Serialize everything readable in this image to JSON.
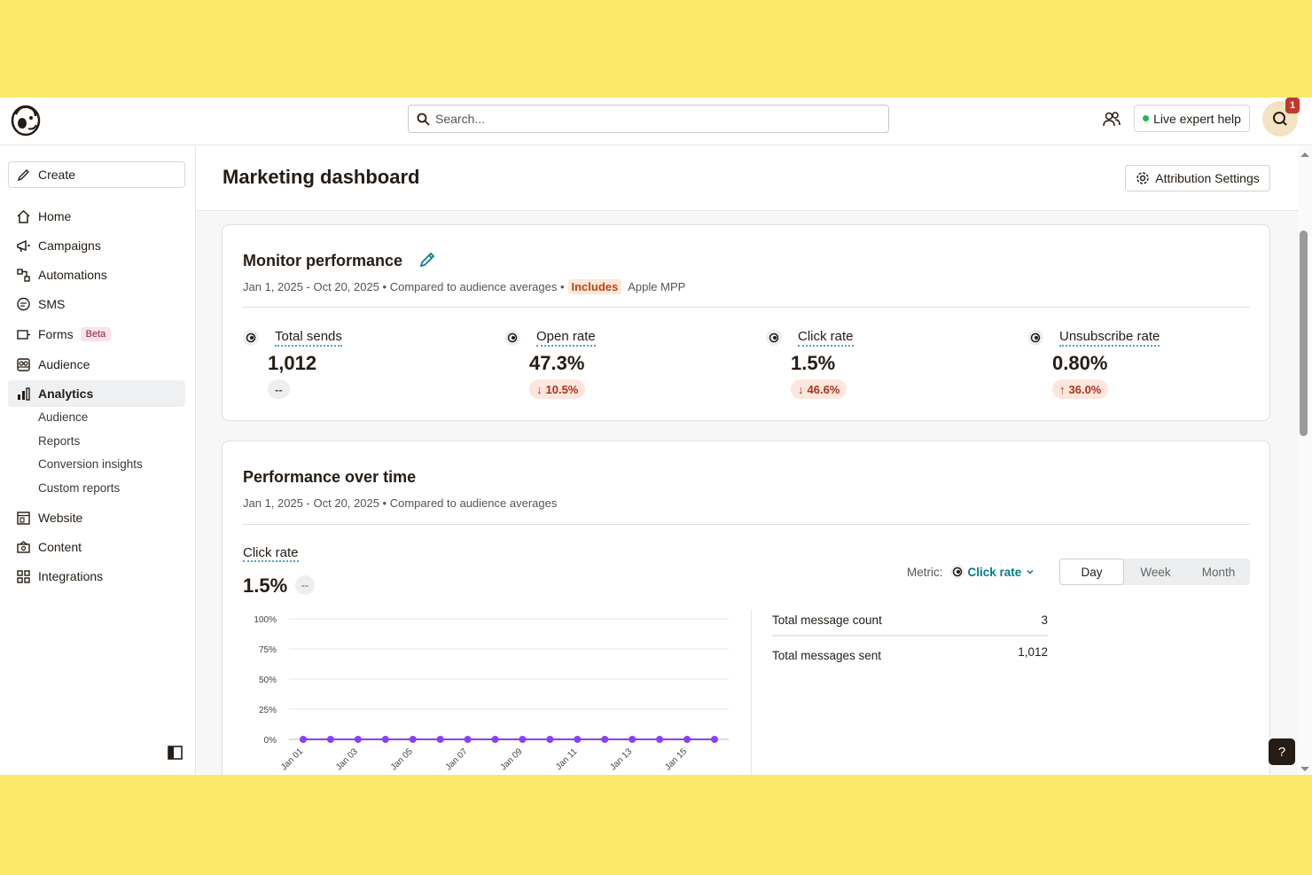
{
  "topbar": {
    "search_placeholder": "Search...",
    "live_help_label": "Live expert help",
    "notification_count": "1"
  },
  "sidebar": {
    "create_label": "Create",
    "items": [
      {
        "label": "Home",
        "icon": "home-icon"
      },
      {
        "label": "Campaigns",
        "icon": "megaphone-icon"
      },
      {
        "label": "Automations",
        "icon": "automations-icon"
      },
      {
        "label": "SMS",
        "icon": "sms-icon"
      },
      {
        "label": "Forms",
        "icon": "forms-icon",
        "badge": "Beta"
      },
      {
        "label": "Audience",
        "icon": "audience-icon"
      },
      {
        "label": "Analytics",
        "icon": "analytics-icon",
        "active": true
      },
      {
        "label": "Website",
        "icon": "website-icon"
      },
      {
        "label": "Content",
        "icon": "content-icon"
      },
      {
        "label": "Integrations",
        "icon": "integrations-icon"
      }
    ],
    "analytics_sub": [
      "Audience",
      "Reports",
      "Conversion insights",
      "Custom reports"
    ]
  },
  "page": {
    "title": "Marketing dashboard",
    "attribution_label": "Attribution Settings"
  },
  "monitor": {
    "title": "Monitor performance",
    "date_range": "Jan 1, 2025 - Oct 20, 2025 • Compared to audience averages •",
    "includes": "Includes",
    "apple_mpp": "Apple MPP",
    "metrics": [
      {
        "label": "Total sends",
        "value": "1,012",
        "change": "--",
        "direction": "none"
      },
      {
        "label": "Open rate",
        "value": "47.3%",
        "change": "10.5%",
        "direction": "down"
      },
      {
        "label": "Click rate",
        "value": "1.5%",
        "change": "46.6%",
        "direction": "down"
      },
      {
        "label": "Unsubscribe rate",
        "value": "0.80%",
        "change": "36.0%",
        "direction": "up"
      }
    ]
  },
  "performance": {
    "title": "Performance over time",
    "date_range": "Jan 1, 2025 - Oct 20, 2025 • Compared to audience averages",
    "metric_label": "Click rate",
    "metric_value": "1.5%",
    "metric_change": "--",
    "metric_select_label": "Metric:",
    "metric_select_value": "Click rate",
    "periods": [
      "Day",
      "Week",
      "Month"
    ],
    "active_period": "Day",
    "stats": [
      {
        "label": "Total message count",
        "value": "3"
      },
      {
        "label": "Total messages sent",
        "value": "1,012"
      }
    ]
  },
  "chart_data": {
    "type": "line",
    "x": [
      "Jan 01",
      "Jan 02",
      "Jan 03",
      "Jan 04",
      "Jan 05",
      "Jan 06",
      "Jan 07",
      "Jan 08",
      "Jan 09",
      "Jan 10",
      "Jan 11",
      "Jan 12",
      "Jan 13",
      "Jan 14",
      "Jan 15",
      "Jan 16"
    ],
    "x_tick_labels": [
      "Jan 01",
      "Jan 03",
      "Jan 05",
      "Jan 07",
      "Jan 09",
      "Jan 11",
      "Jan 13",
      "Jan 15"
    ],
    "series": [
      {
        "values": [
          0,
          0,
          0,
          0,
          0,
          0,
          0,
          0,
          0,
          0,
          0,
          0,
          0,
          0,
          0,
          0
        ],
        "color": "#8a3ffc"
      }
    ],
    "y_ticks": [
      "100%",
      "75%",
      "50%",
      "25%",
      "0%"
    ],
    "ylim": [
      0,
      100
    ],
    "grid": true
  },
  "help_label": "?"
}
